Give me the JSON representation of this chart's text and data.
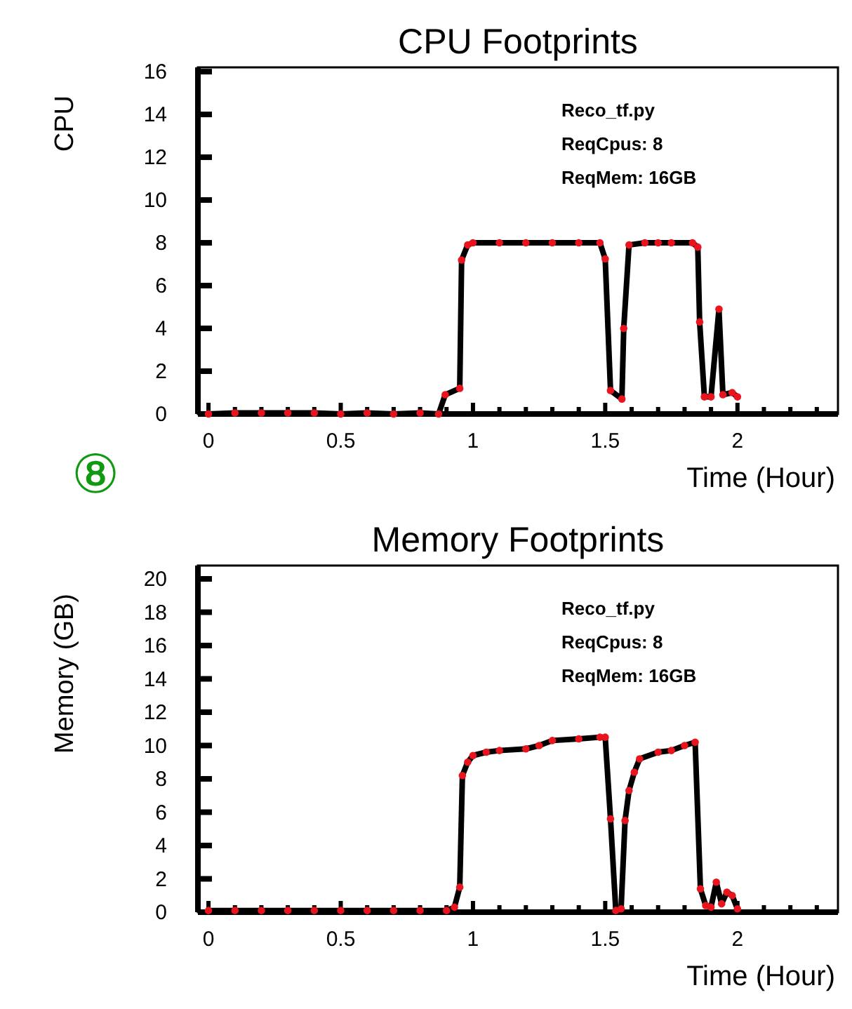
{
  "chart_data": [
    {
      "type": "line",
      "title": "CPU Footprints",
      "xlabel": "Time (Hour)",
      "ylabel": "CPU",
      "annotations": [
        "Reco_tf.py",
        "ReqCpus: 8",
        "ReqMem: 16GB"
      ],
      "marker": "circle",
      "line_style": "solid",
      "grid": false,
      "xlim": [
        -0.04,
        2.38
      ],
      "ylim": [
        0,
        16.2
      ],
      "xticks": [
        0,
        {
          "value": 0.1,
          "label": null
        },
        {
          "value": 0.2,
          "label": null
        },
        {
          "value": 0.3,
          "label": null
        },
        {
          "value": 0.4,
          "label": null
        },
        0.5,
        {
          "value": 0.6,
          "label": null
        },
        {
          "value": 0.7,
          "label": null
        },
        {
          "value": 0.8,
          "label": null
        },
        {
          "value": 0.9,
          "label": null
        },
        1,
        {
          "value": 1.1,
          "label": null
        },
        {
          "value": 1.2,
          "label": null
        },
        {
          "value": 1.3,
          "label": null
        },
        {
          "value": 1.4,
          "label": null
        },
        1.5,
        {
          "value": 1.6,
          "label": null
        },
        {
          "value": 1.7,
          "label": null
        },
        {
          "value": 1.8,
          "label": null
        },
        {
          "value": 1.9,
          "label": null
        },
        2,
        {
          "value": 2.1,
          "label": null
        },
        {
          "value": 2.2,
          "label": null
        },
        {
          "value": 2.3,
          "label": null
        }
      ],
      "yticks": [
        0,
        2,
        4,
        6,
        8,
        10,
        12,
        14,
        16
      ],
      "series": [
        {
          "color": "#e8141e",
          "x": [
            0,
            0.1,
            0.2,
            0.3,
            0.4,
            0.5,
            0.6,
            0.7,
            0.8,
            0.87,
            0.895,
            0.95,
            0.957,
            0.98,
            1.0,
            1.1,
            1.2,
            1.3,
            1.4,
            1.48,
            1.5,
            1.52,
            1.563,
            1.57,
            1.59,
            1.65,
            1.7,
            1.75,
            1.83,
            1.85,
            1.857,
            1.875,
            1.9,
            1.93,
            1.945,
            1.98,
            2.0
          ],
          "values": [
            0,
            0.05,
            0.05,
            0.05,
            0.05,
            0,
            0.05,
            0,
            0.05,
            0,
            0.9,
            1.2,
            7.2,
            7.9,
            8,
            8,
            8,
            8,
            8,
            8,
            7.25,
            1.1,
            0.7,
            4,
            7.9,
            8,
            8,
            8,
            8,
            7.8,
            4.3,
            0.8,
            0.8,
            4.9,
            0.9,
            1,
            0.8
          ]
        }
      ]
    },
    {
      "type": "line",
      "title": "Memory Footprints",
      "xlabel": "Time (Hour)",
      "ylabel": "Memory (GB)",
      "annotations": [
        "Reco_tf.py",
        "ReqCpus: 8",
        "ReqMem: 16GB",
        "⑧"
      ],
      "marker": "circle",
      "line_style": "solid",
      "grid": false,
      "xlim": [
        -0.04,
        2.38
      ],
      "ylim": [
        0,
        20.8
      ],
      "xticks": [
        0,
        {
          "value": 0.1,
          "label": null
        },
        {
          "value": 0.2,
          "label": null
        },
        {
          "value": 0.3,
          "label": null
        },
        {
          "value": 0.4,
          "label": null
        },
        0.5,
        {
          "value": 0.6,
          "label": null
        },
        {
          "value": 0.7,
          "label": null
        },
        {
          "value": 0.8,
          "label": null
        },
        {
          "value": 0.9,
          "label": null
        },
        1,
        {
          "value": 1.1,
          "label": null
        },
        {
          "value": 1.2,
          "label": null
        },
        {
          "value": 1.3,
          "label": null
        },
        {
          "value": 1.4,
          "label": null
        },
        1.5,
        {
          "value": 1.6,
          "label": null
        },
        {
          "value": 1.7,
          "label": null
        },
        {
          "value": 1.8,
          "label": null
        },
        {
          "value": 1.9,
          "label": null
        },
        2,
        {
          "value": 2.1,
          "label": null
        },
        {
          "value": 2.2,
          "label": null
        },
        {
          "value": 2.3,
          "label": null
        }
      ],
      "yticks": [
        0,
        2,
        4,
        6,
        8,
        10,
        12,
        14,
        16,
        18,
        20
      ],
      "series": [
        {
          "color": "#e8141e",
          "x": [
            0,
            0.1,
            0.2,
            0.3,
            0.4,
            0.5,
            0.6,
            0.7,
            0.8,
            0.9,
            0.93,
            0.95,
            0.96,
            0.98,
            1.0,
            1.05,
            1.1,
            1.2,
            1.25,
            1.3,
            1.4,
            1.48,
            1.5,
            1.52,
            1.54,
            1.56,
            1.575,
            1.59,
            1.61,
            1.63,
            1.7,
            1.75,
            1.8,
            1.84,
            1.86,
            1.88,
            1.9,
            1.92,
            1.94,
            1.96,
            1.98,
            2.0
          ],
          "values": [
            0.1,
            0.1,
            0.1,
            0.1,
            0.1,
            0.1,
            0.1,
            0.1,
            0.1,
            0.1,
            0.3,
            1.5,
            8.2,
            9,
            9.4,
            9.6,
            9.7,
            9.8,
            10,
            10.3,
            10.4,
            10.5,
            10.5,
            5.6,
            0.1,
            0.2,
            5.5,
            7.3,
            8.4,
            9.2,
            9.6,
            9.7,
            10,
            10.2,
            1.4,
            0.4,
            0.3,
            1.8,
            0.5,
            1.2,
            1,
            0.2
          ]
        }
      ]
    }
  ]
}
